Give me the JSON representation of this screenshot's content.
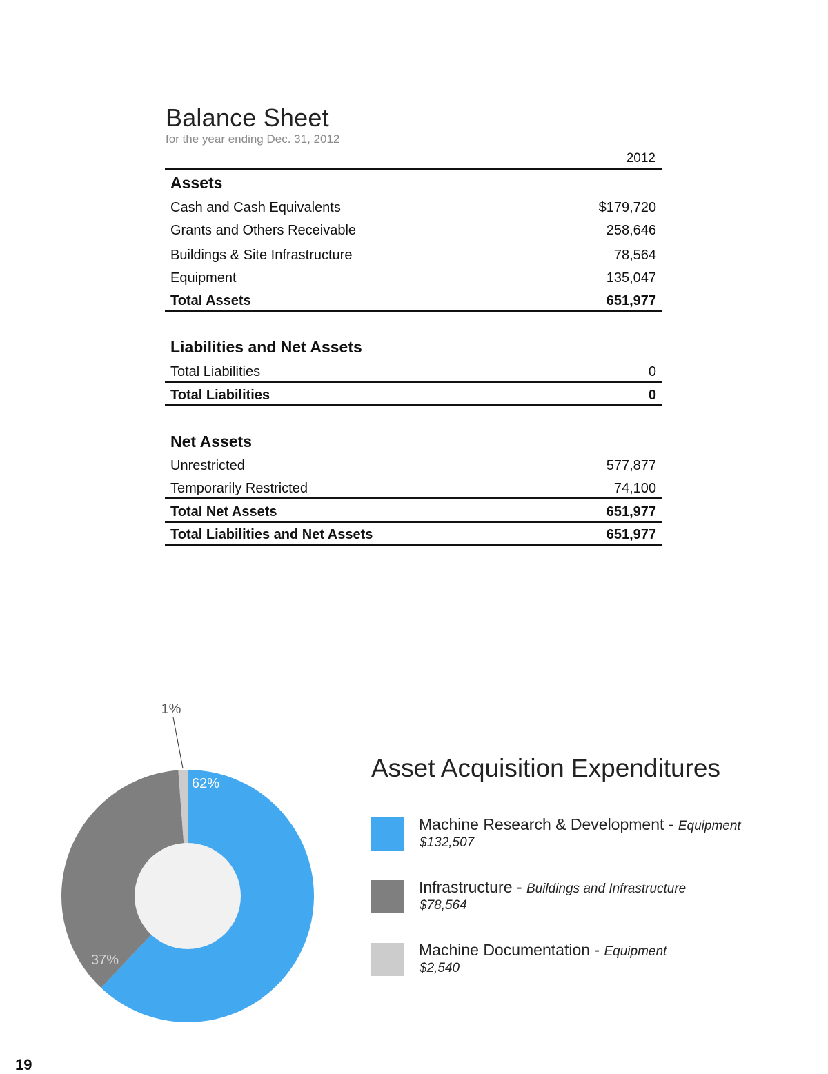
{
  "balance_sheet": {
    "title": "Balance Sheet",
    "subtitle": "for the year ending Dec. 31, 2012",
    "year": "2012",
    "assets": {
      "heading": "Assets",
      "rows": [
        {
          "label": "Cash and Cash Equivalents",
          "value": "$179,720"
        },
        {
          "label": "Grants and Others Receivable",
          "value": "258,646"
        },
        {
          "label": "Buildings & Site Infrastructure",
          "value": "78,564"
        },
        {
          "label": "Equipment",
          "value": "135,047"
        }
      ],
      "total": {
        "label": "Total Assets",
        "value": "651,977"
      }
    },
    "liabilities": {
      "heading": "Liabilities and Net Assets",
      "rows": [
        {
          "label": "Total Liabilities",
          "value": "0"
        }
      ],
      "total": {
        "label": "Total Liabilities",
        "value": "0"
      }
    },
    "net_assets": {
      "heading": "Net Assets",
      "rows": [
        {
          "label": "Unrestricted",
          "value": "577,877"
        },
        {
          "label": "Temporarily Restricted",
          "value": "74,100"
        }
      ],
      "total": {
        "label": "Total Net Assets",
        "value": "651,977"
      },
      "grand_total": {
        "label": "Total Liabilities and Net Assets",
        "value": "651,977"
      }
    }
  },
  "chart_data": {
    "type": "pie",
    "title": "Asset Acquisition Expenditures",
    "categories": [
      "Machine Research & Development",
      "Infrastructure",
      "Machine Documentation"
    ],
    "values": [
      132507,
      78564,
      2540
    ],
    "percent_labels": [
      "62%",
      "37%",
      "1%"
    ],
    "colors": [
      "#42a8f0",
      "#7f7f7f",
      "#cccccc"
    ],
    "center_color": "#f1f1f1",
    "legend": [
      {
        "name": "Machine Research & Development",
        "type": "Equipment",
        "amount": "$132,507"
      },
      {
        "name": "Infrastructure",
        "type": "Buildings and Infrastructure",
        "amount": "$78,564"
      },
      {
        "name": "Machine Documentation",
        "type": "Equipment",
        "amount": "$2,540"
      }
    ],
    "legend_separator": "-"
  },
  "page_number": "19"
}
